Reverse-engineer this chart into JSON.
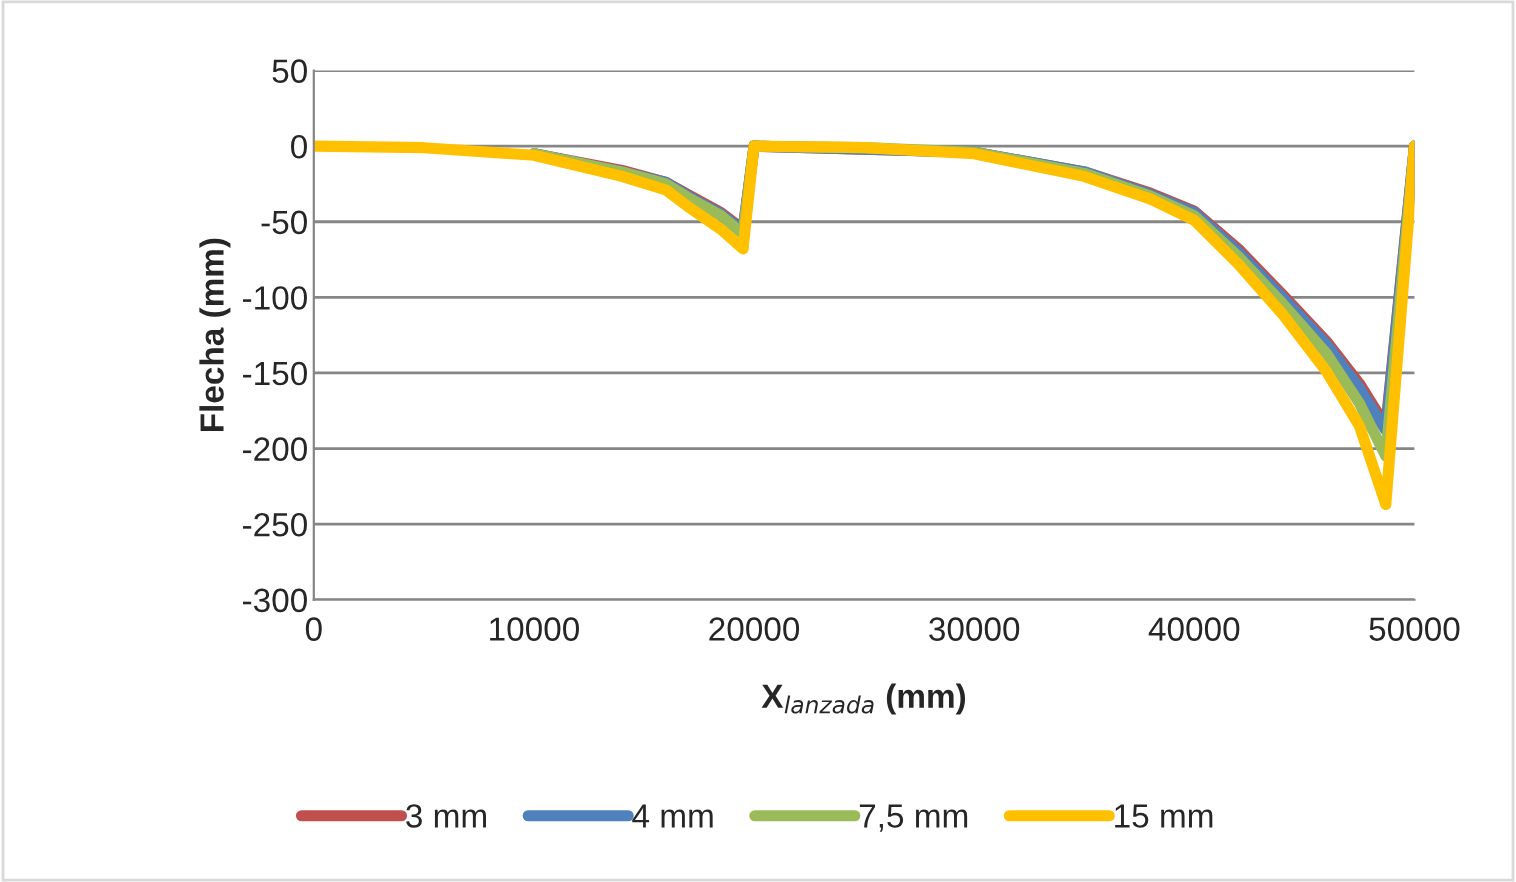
{
  "chart_data": {
    "type": "line",
    "xlabel": "X$_{lanzada}$ (mm)",
    "ylabel": "Flecha (mm)",
    "x": [
      0,
      5000,
      10000,
      14000,
      16000,
      17000,
      18500,
      19500,
      20000,
      25000,
      30000,
      35000,
      38000,
      40000,
      42000,
      44000,
      46000,
      47500,
      48700,
      50000
    ],
    "series": [
      {
        "name": "3 mm",
        "color": "#c0504d",
        "values": [
          null,
          null,
          -5,
          -16,
          -24,
          -32,
          -44,
          -55,
          0,
          null,
          -4,
          -17,
          -31,
          -43,
          -68,
          -98,
          -129,
          -157,
          -185,
          0
        ]
      },
      {
        "name": "4 mm",
        "color": "#4f81bd",
        "values": [
          null,
          null,
          -5,
          -17,
          -24,
          -33,
          -45,
          -56,
          0,
          null,
          -4,
          -17,
          -32,
          -44,
          -70,
          -100,
          -131,
          -160,
          -188,
          0
        ]
      },
      {
        "name": "7,5 mm",
        "color": "#9bbb59",
        "values": [
          null,
          null,
          -5,
          -17,
          -25,
          -34,
          -46,
          -58,
          0,
          -1,
          -4,
          -18,
          -33,
          -46,
          -73,
          -104,
          -137,
          -170,
          -205,
          0
        ]
      },
      {
        "name": "15 mm",
        "color": "#ffc000",
        "values": [
          0,
          -1,
          -6,
          -20,
          -29,
          -40,
          -55,
          -68,
          0,
          -1,
          -5,
          -20,
          -35,
          -49,
          -78,
          -111,
          -149,
          -185,
          -237,
          0
        ]
      }
    ],
    "xlim": [
      0,
      50000
    ],
    "xticks": [
      0,
      10000,
      20000,
      30000,
      40000,
      50000
    ],
    "ylim": [
      -300,
      50
    ],
    "yticks": [
      -300,
      -250,
      -200,
      -150,
      -100,
      -50,
      0,
      50
    ],
    "grid": "y",
    "legend": "bottom",
    "marker": "none",
    "line_style": "solid"
  }
}
